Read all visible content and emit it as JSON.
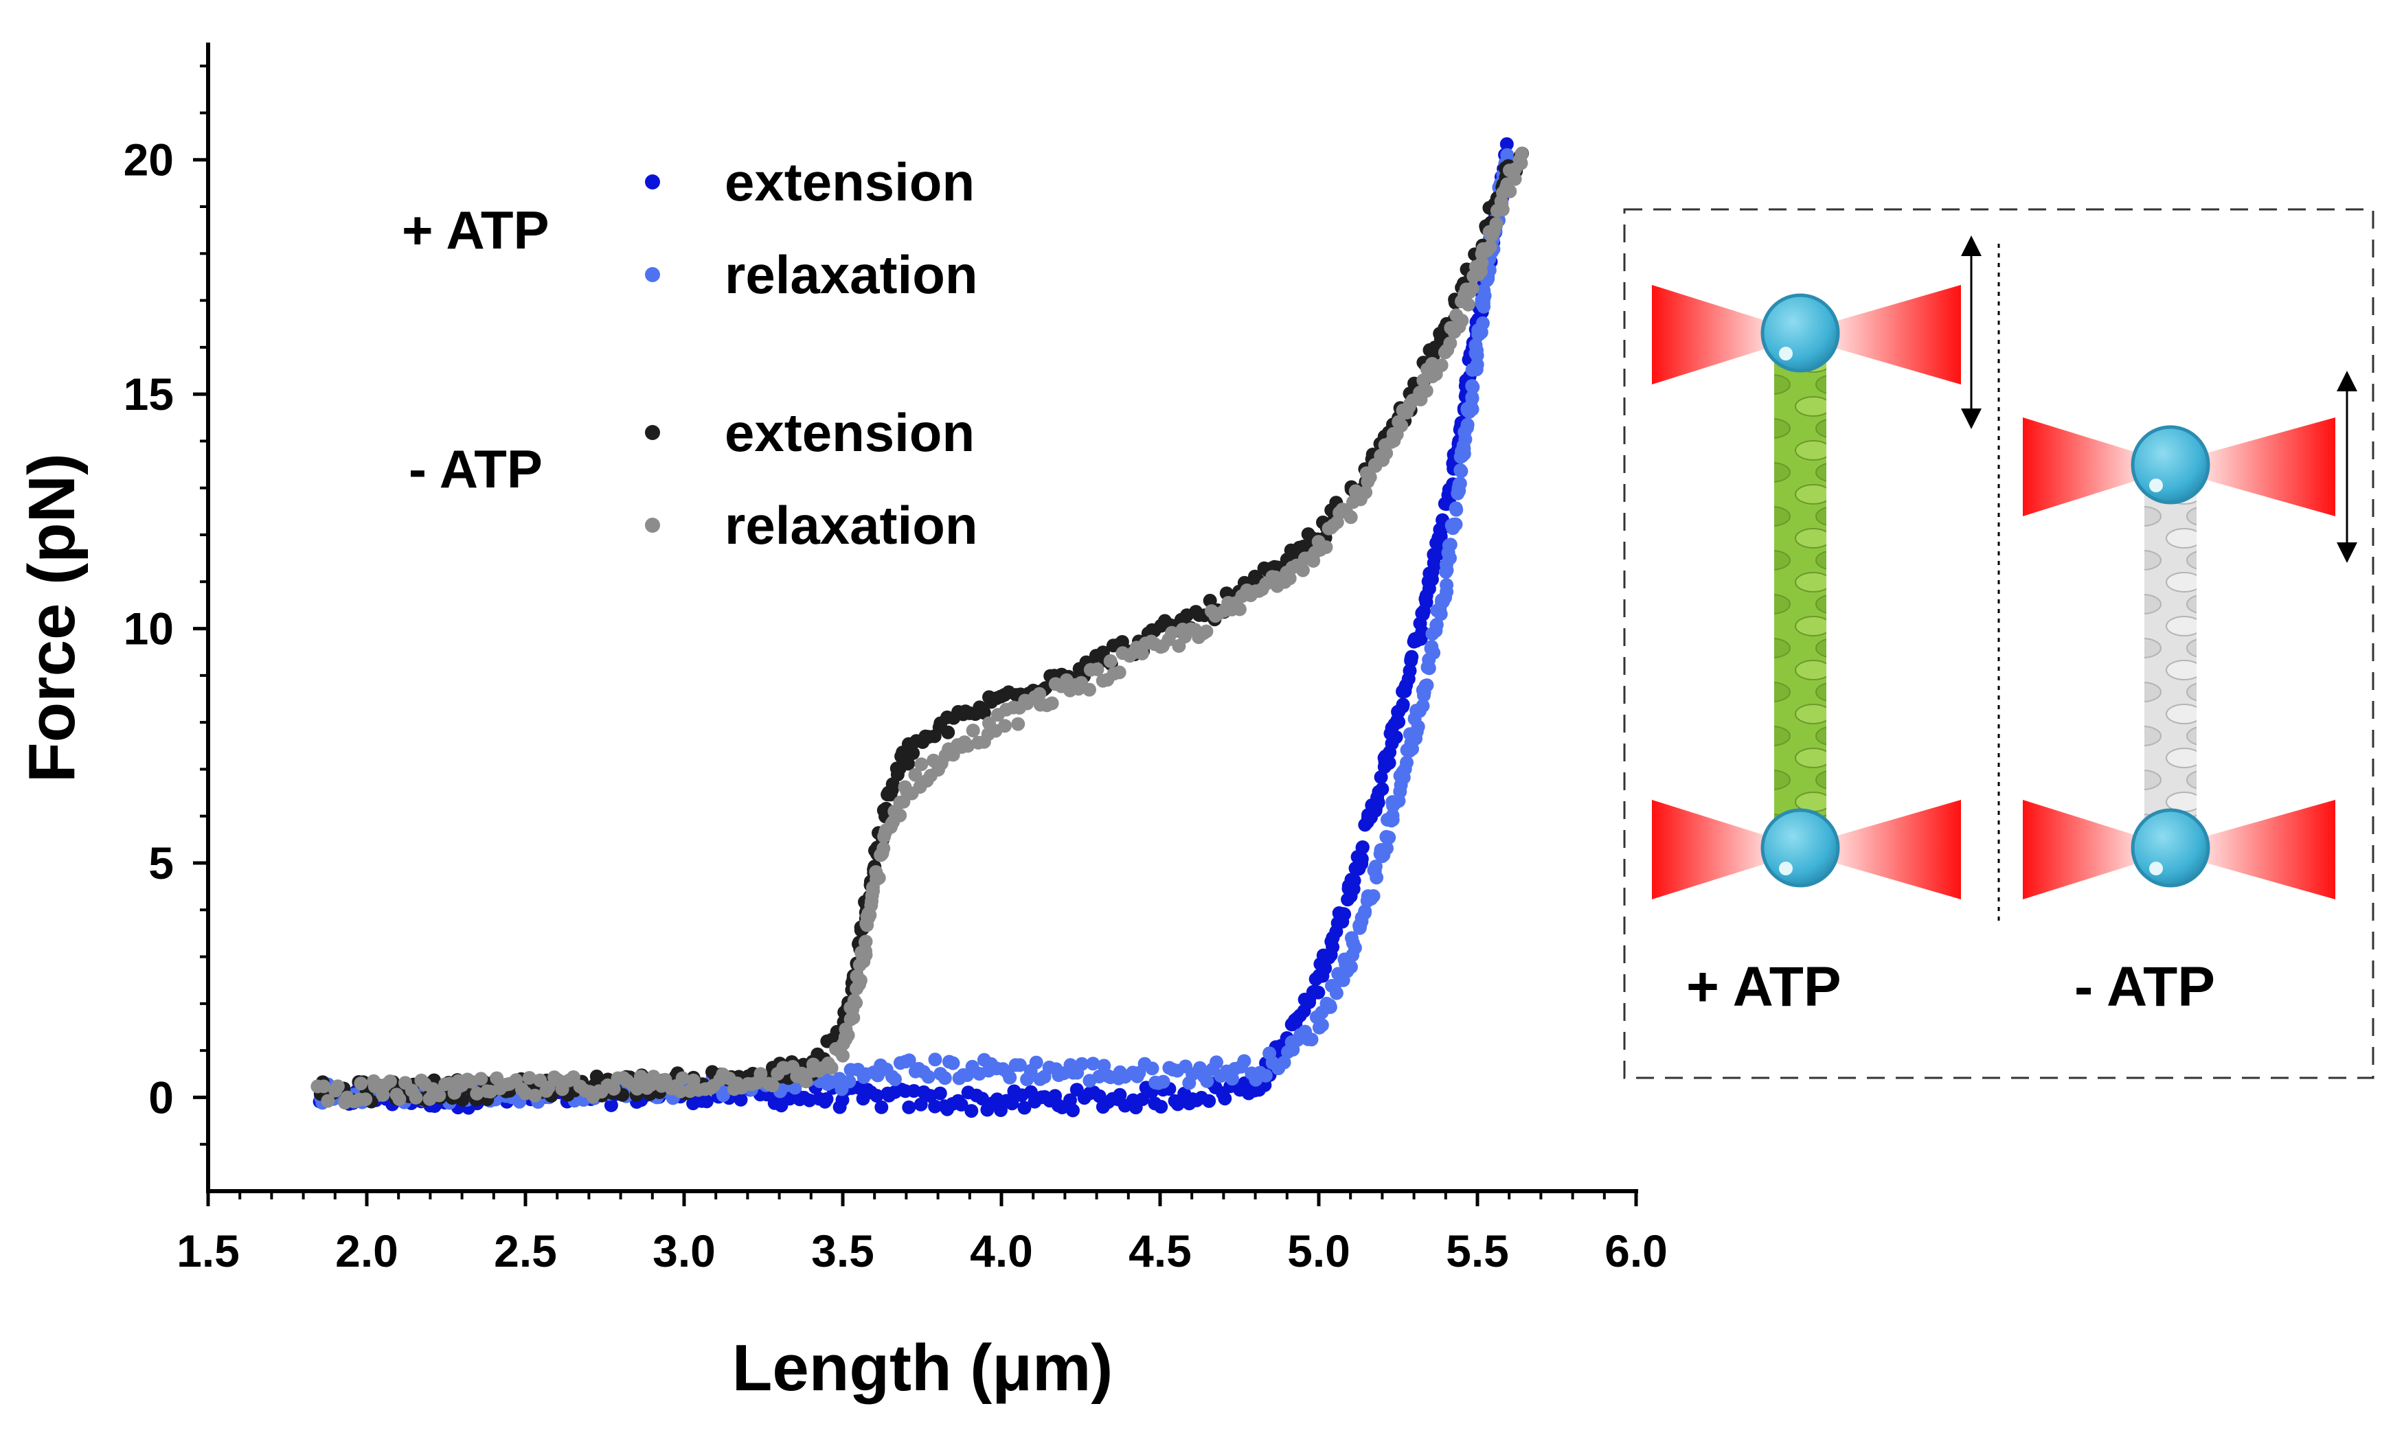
{
  "chart_data": {
    "type": "scatter",
    "xlabel": "Length (μm)",
    "ylabel": "Force (pN)",
    "xlim": [
      1.5,
      6.0
    ],
    "ylim": [
      -2.0,
      22.5
    ],
    "xticks": [
      "1.5",
      "2.0",
      "2.5",
      "3.0",
      "3.5",
      "4.0",
      "4.5",
      "5.0",
      "5.5",
      "6.0"
    ],
    "yticks": [
      "0",
      "5",
      "10",
      "15",
      "20"
    ],
    "legend": {
      "groups": [
        {
          "label": "+ ATP",
          "entries": [
            {
              "label": "extension",
              "color": "#0a14d8"
            },
            {
              "label": "relaxation",
              "color": "#4f72f0"
            }
          ]
        },
        {
          "label": "- ATP",
          "entries": [
            {
              "label": "extension",
              "color": "#1e1e1e"
            },
            {
              "label": "relaxation",
              "color": "#8c8c8c"
            }
          ]
        }
      ]
    },
    "series": [
      {
        "name": "+ATP extension",
        "color": "#0a14d8",
        "x": [
          1.85,
          2.5,
          3.0,
          3.5,
          4.0,
          4.5,
          4.8,
          4.9,
          5.0,
          5.1,
          5.2,
          5.3,
          5.4,
          5.45,
          5.5,
          5.55,
          5.6
        ],
        "y": [
          0.0,
          0.0,
          0.1,
          0.0,
          -0.1,
          0.0,
          0.2,
          1.2,
          2.5,
          4.5,
          6.8,
          9.5,
          12.5,
          14.5,
          16.5,
          18.5,
          20.3
        ]
      },
      {
        "name": "+ATP relaxation",
        "color": "#4f72f0",
        "x": [
          1.85,
          2.5,
          3.0,
          3.5,
          3.7,
          4.0,
          4.5,
          4.8,
          4.9,
          5.0,
          5.1,
          5.2,
          5.3,
          5.4,
          5.45,
          5.5,
          5.55,
          5.6
        ],
        "y": [
          0.1,
          0.1,
          0.2,
          0.4,
          0.6,
          0.6,
          0.5,
          0.6,
          0.9,
          1.6,
          3.0,
          5.2,
          7.8,
          11.0,
          13.5,
          16.0,
          18.5,
          20.2
        ]
      },
      {
        "name": "-ATP extension",
        "color": "#1e1e1e",
        "x": [
          1.85,
          2.5,
          3.0,
          3.4,
          3.5,
          3.55,
          3.6,
          3.65,
          3.7,
          3.75,
          3.9,
          4.1,
          4.3,
          4.5,
          4.7,
          4.9,
          5.0,
          5.1,
          5.2,
          5.3,
          5.4,
          5.5,
          5.6,
          5.65
        ],
        "y": [
          0.1,
          0.2,
          0.3,
          0.6,
          1.4,
          3.0,
          5.0,
          6.5,
          7.3,
          7.6,
          8.2,
          8.8,
          9.3,
          9.9,
          10.5,
          11.4,
          12.0,
          12.8,
          13.8,
          15.0,
          16.4,
          18.0,
          19.8,
          20.2
        ]
      },
      {
        "name": "-ATP relaxation",
        "color": "#8c8c8c",
        "x": [
          1.85,
          2.5,
          3.0,
          3.4,
          3.5,
          3.55,
          3.6,
          3.65,
          3.7,
          3.75,
          3.9,
          4.1,
          4.3,
          4.5,
          4.7,
          4.9,
          5.0,
          5.1,
          5.2,
          5.3,
          5.4,
          5.5,
          5.6,
          5.65
        ],
        "y": [
          0.1,
          0.2,
          0.3,
          0.5,
          1.0,
          2.4,
          4.6,
          5.8,
          6.6,
          6.9,
          7.6,
          8.4,
          9.0,
          9.6,
          10.3,
          11.2,
          11.8,
          12.6,
          13.6,
          14.8,
          16.0,
          17.6,
          19.5,
          20.1
        ]
      }
    ]
  },
  "inset": {
    "left_label": "+ ATP",
    "right_label": "- ATP",
    "colors": {
      "laser": "#ff2020",
      "bead": "#4ab8d8",
      "filament_atp": "#8cc63f",
      "filament_noatp": "#d8d8d8"
    }
  }
}
